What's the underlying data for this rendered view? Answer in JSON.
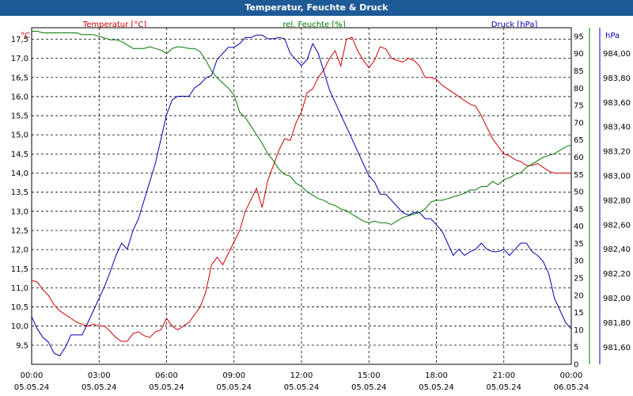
{
  "window": {
    "title": "Temperatur, Feuchte & Druck"
  },
  "colors": {
    "title_bg": "#1e5a96",
    "temp": "#cc0000",
    "hum": "#007700",
    "press": "#0000aa",
    "grid": "#000000",
    "text": "#000000"
  },
  "chart_data": {
    "type": "line",
    "title": "Temperatur, Feuchte & Druck",
    "x_ticks": [
      {
        "time": "00:00",
        "date": "05.05.24"
      },
      {
        "time": "03:00",
        "date": "05.05.24"
      },
      {
        "time": "06:00",
        "date": "05.05.24"
      },
      {
        "time": "09:00",
        "date": "05.05.24"
      },
      {
        "time": "12:00",
        "date": "05.05.24"
      },
      {
        "time": "15:00",
        "date": "05.05.24"
      },
      {
        "time": "18:00",
        "date": "05.05.24"
      },
      {
        "time": "21:00",
        "date": "05.05.24"
      },
      {
        "time": "00:00",
        "date": "06.05.24"
      }
    ],
    "xlim_hours": [
      0,
      24
    ],
    "axes": {
      "temp": {
        "label": "Temperatur [°C]",
        "unit": "°C",
        "lim": [
          9.0,
          17.8
        ],
        "ticks": [
          "9,5",
          "10,0",
          "10,5",
          "11,0",
          "11,5",
          "12,0",
          "12,5",
          "13,0",
          "13,5",
          "14,0",
          "14,5",
          "15,0",
          "15,5",
          "16,0",
          "16,5",
          "17,0",
          "17,5"
        ]
      },
      "hum": {
        "label": "rel. Feuchte [%]",
        "unit": "%",
        "lim": [
          0,
          97.5
        ],
        "ticks": [
          "0",
          "5",
          "10",
          "15",
          "20",
          "25",
          "30",
          "35",
          "40",
          "45",
          "50",
          "55",
          "60",
          "65",
          "70",
          "75",
          "80",
          "85",
          "90",
          "95"
        ]
      },
      "press": {
        "label": "Druck [hPa]",
        "unit": "hPa",
        "lim": [
          981.46,
          984.21
        ],
        "ticks": [
          "981,60",
          "981,80",
          "982,00",
          "982,20",
          "982,40",
          "982,60",
          "982,80",
          "983,00",
          "983,20",
          "983,40",
          "983,60",
          "983,80",
          "984,00"
        ]
      }
    },
    "series": [
      {
        "name": "Temperatur",
        "axis": "temp",
        "color": "#cc0000",
        "x": [
          0,
          0.25,
          0.5,
          0.75,
          1,
          1.25,
          1.5,
          1.75,
          2,
          2.25,
          2.5,
          2.75,
          3,
          3.25,
          3.5,
          3.75,
          4,
          4.25,
          4.5,
          4.75,
          5,
          5.25,
          5.5,
          5.75,
          6,
          6.25,
          6.5,
          6.75,
          7,
          7.25,
          7.5,
          7.75,
          8,
          8.25,
          8.5,
          8.75,
          9,
          9.25,
          9.5,
          9.75,
          10,
          10.25,
          10.5,
          10.75,
          11,
          11.25,
          11.5,
          11.75,
          12,
          12.25,
          12.5,
          12.75,
          13,
          13.25,
          13.5,
          13.75,
          14,
          14.25,
          14.5,
          14.75,
          15,
          15.25,
          15.5,
          15.75,
          16,
          16.25,
          16.5,
          16.75,
          17,
          17.25,
          17.5,
          17.75,
          18,
          18.25,
          18.5,
          18.75,
          19,
          19.25,
          19.5,
          19.75,
          20,
          20.25,
          20.5,
          20.75,
          21,
          21.25,
          21.5,
          21.75,
          22,
          22.25,
          22.5,
          22.75,
          23,
          23.25,
          23.5,
          23.75,
          24
        ],
        "values": [
          11.2,
          11.15,
          10.95,
          10.8,
          10.55,
          10.4,
          10.3,
          10.2,
          10.1,
          10.05,
          10.0,
          10.05,
          10.0,
          10.0,
          9.85,
          9.7,
          9.6,
          9.6,
          9.8,
          9.85,
          9.75,
          9.7,
          9.85,
          9.9,
          10.2,
          10.0,
          9.9,
          10.0,
          10.1,
          10.3,
          10.5,
          10.9,
          11.6,
          11.8,
          11.6,
          11.9,
          12.2,
          12.5,
          13.0,
          13.3,
          13.6,
          13.1,
          13.8,
          14.2,
          14.6,
          14.9,
          14.85,
          15.3,
          15.6,
          16.1,
          16.2,
          16.5,
          16.7,
          17.0,
          17.2,
          16.8,
          17.5,
          17.55,
          17.2,
          16.95,
          16.75,
          16.95,
          17.3,
          17.25,
          17.0,
          16.95,
          16.9,
          17.0,
          16.95,
          16.8,
          16.5,
          16.5,
          16.45,
          16.3,
          16.2,
          16.1,
          16.0,
          15.9,
          15.8,
          15.75,
          15.5,
          15.2,
          14.9,
          14.7,
          14.5,
          14.45,
          14.35,
          14.3,
          14.2,
          14.2,
          14.25,
          14.15,
          14.05,
          14.0,
          14.0,
          14.0,
          14.0
        ]
      },
      {
        "name": "rel. Feuchte",
        "axis": "hum",
        "color": "#007700",
        "x": [
          0,
          0.25,
          0.5,
          0.75,
          1,
          1.25,
          1.5,
          1.75,
          2,
          2.25,
          2.5,
          2.75,
          3,
          3.25,
          3.5,
          3.75,
          4,
          4.25,
          4.5,
          4.75,
          5,
          5.25,
          5.5,
          5.75,
          6,
          6.25,
          6.5,
          6.75,
          7,
          7.25,
          7.5,
          7.75,
          8,
          8.25,
          8.5,
          8.75,
          9,
          9.25,
          9.5,
          9.75,
          10,
          10.25,
          10.5,
          10.75,
          11,
          11.25,
          11.5,
          11.75,
          12,
          12.25,
          12.5,
          12.75,
          13,
          13.25,
          13.5,
          13.75,
          14,
          14.25,
          14.5,
          14.75,
          15,
          15.25,
          15.5,
          15.75,
          16,
          16.25,
          16.5,
          16.75,
          17,
          17.25,
          17.5,
          17.75,
          18,
          18.25,
          18.5,
          18.75,
          19,
          19.25,
          19.5,
          19.75,
          20,
          20.25,
          20.5,
          20.75,
          21,
          21.25,
          21.5,
          21.75,
          22,
          22.25,
          22.5,
          22.75,
          23,
          23.25,
          23.5,
          23.75,
          24
        ],
        "values": [
          96.5,
          96.5,
          96.0,
          96.0,
          96.0,
          96.0,
          96.0,
          96.0,
          96.0,
          95.5,
          95.5,
          95.5,
          95.0,
          94.5,
          94.0,
          94.0,
          93.5,
          92.5,
          91.5,
          91.5,
          91.5,
          92.0,
          91.5,
          91.0,
          90.0,
          91.5,
          92.0,
          91.8,
          91.5,
          91.5,
          90.5,
          88.0,
          85.0,
          83.0,
          81.5,
          80.0,
          78.0,
          73.0,
          71.5,
          69.0,
          66.5,
          64.0,
          61.0,
          59.0,
          56.5,
          55.0,
          54.5,
          52.5,
          51.5,
          50.0,
          49.0,
          48.0,
          47.5,
          46.5,
          46.0,
          45.0,
          44.5,
          43.5,
          42.5,
          41.5,
          41.0,
          41.5,
          41.0,
          41.0,
          40.5,
          41.5,
          42.5,
          43.0,
          43.5,
          44.0,
          45.0,
          47.0,
          47.5,
          47.5,
          48.0,
          48.5,
          49.0,
          49.5,
          50.5,
          50.5,
          51.5,
          51.5,
          53.0,
          52.0,
          53.5,
          54.0,
          55.0,
          55.5,
          57.0,
          58.0,
          59.0,
          60.0,
          60.5,
          61.0,
          62.0,
          63.0,
          63.5
        ]
      },
      {
        "name": "Druck",
        "axis": "press",
        "color": "#0000aa",
        "x": [
          0,
          0.25,
          0.5,
          0.75,
          1,
          1.25,
          1.5,
          1.75,
          2,
          2.25,
          2.5,
          2.75,
          3,
          3.25,
          3.5,
          3.75,
          4,
          4.25,
          4.5,
          4.75,
          5,
          5.25,
          5.5,
          5.75,
          6,
          6.25,
          6.5,
          6.75,
          7,
          7.25,
          7.5,
          7.75,
          8,
          8.25,
          8.5,
          8.75,
          9,
          9.25,
          9.5,
          9.75,
          10,
          10.25,
          10.5,
          10.75,
          11,
          11.25,
          11.5,
          11.75,
          12,
          12.25,
          12.5,
          12.75,
          13,
          13.25,
          13.5,
          13.75,
          14,
          14.25,
          14.5,
          14.75,
          15,
          15.25,
          15.5,
          15.75,
          16,
          16.25,
          16.5,
          16.75,
          17,
          17.25,
          17.5,
          17.75,
          18,
          18.25,
          18.5,
          18.75,
          19,
          19.25,
          19.5,
          19.75,
          20,
          20.25,
          20.5,
          20.75,
          21,
          21.25,
          21.5,
          21.75,
          22,
          22.25,
          22.5,
          22.75,
          23,
          23.25,
          23.5,
          23.75,
          24
        ],
        "values": [
          981.85,
          981.75,
          981.68,
          981.64,
          981.55,
          981.53,
          981.6,
          981.7,
          981.7,
          981.7,
          981.8,
          981.9,
          982.0,
          982.1,
          982.22,
          982.35,
          982.45,
          982.4,
          982.55,
          982.65,
          982.8,
          982.95,
          983.1,
          983.3,
          983.5,
          983.62,
          983.65,
          983.65,
          983.65,
          983.72,
          983.75,
          983.8,
          983.82,
          983.95,
          984.0,
          984.05,
          984.05,
          984.08,
          984.13,
          984.13,
          984.15,
          984.15,
          984.12,
          984.12,
          984.13,
          984.12,
          984.0,
          983.95,
          983.9,
          983.95,
          984.08,
          984.0,
          983.85,
          983.7,
          983.6,
          983.5,
          983.4,
          983.3,
          983.2,
          983.1,
          983.0,
          982.95,
          982.85,
          982.85,
          982.8,
          982.75,
          982.7,
          982.68,
          982.7,
          982.7,
          982.65,
          982.65,
          982.6,
          982.55,
          982.45,
          982.35,
          982.4,
          982.35,
          982.38,
          982.4,
          982.45,
          982.4,
          982.38,
          982.38,
          982.4,
          982.35,
          982.4,
          982.45,
          982.45,
          982.38,
          982.35,
          982.3,
          982.2,
          982.0,
          981.9,
          981.8,
          981.75
        ]
      }
    ]
  }
}
